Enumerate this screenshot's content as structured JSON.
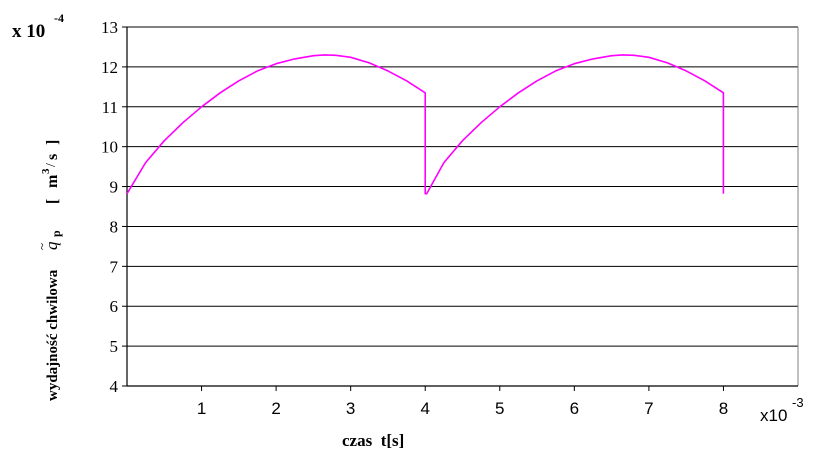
{
  "chart_data": {
    "type": "line",
    "title": "",
    "y_multiplier_label": "x 10",
    "y_multiplier_exponent": "-4",
    "ylabel_left": "wydajność chwilowa",
    "ylabel_symbol": "q",
    "ylabel_tilde": "~",
    "ylabel_subscript": "p",
    "ylabel_unit_open": "[",
    "ylabel_unit_m": "m",
    "ylabel_unit_exp": "3",
    "ylabel_unit_slash": "/",
    "ylabel_unit_s": "s",
    "ylabel_unit_close": "]",
    "xlabel": "czas  t[s]",
    "x_multiplier_label": "x10",
    "x_multiplier_exponent": "-3",
    "xlim": [
      0,
      9
    ],
    "ylim": [
      4,
      13
    ],
    "x_ticks": [
      "1",
      "2",
      "3",
      "4",
      "5",
      "6",
      "7",
      "8"
    ],
    "x_tick_values": [
      1,
      2,
      3,
      4,
      5,
      6,
      7,
      8
    ],
    "y_ticks": [
      "4",
      "5",
      "6",
      "7",
      "8",
      "9",
      "10",
      "11",
      "12",
      "13"
    ],
    "y_tick_values": [
      4,
      5,
      6,
      7,
      8,
      9,
      10,
      11,
      12,
      13
    ],
    "grid": true,
    "series": [
      {
        "color": "#ff00ff",
        "x": [
          0,
          0.25,
          0.5,
          0.75,
          1.0,
          1.25,
          1.5,
          1.75,
          2.0,
          2.25,
          2.5,
          2.65,
          2.8,
          3.0,
          3.25,
          3.5,
          3.75,
          4.0,
          4.0,
          4.02,
          4.25,
          4.5,
          4.75,
          5.0,
          5.25,
          5.5,
          5.75,
          6.0,
          6.25,
          6.5,
          6.65,
          6.8,
          7.0,
          7.25,
          7.5,
          7.75,
          8.0,
          8.0
        ],
        "y": [
          8.82,
          9.6,
          10.15,
          10.6,
          11.0,
          11.35,
          11.65,
          11.9,
          12.08,
          12.2,
          12.28,
          12.3,
          12.29,
          12.24,
          12.1,
          11.9,
          11.65,
          11.35,
          8.82,
          8.82,
          9.6,
          10.15,
          10.6,
          11.0,
          11.35,
          11.65,
          11.9,
          12.08,
          12.2,
          12.28,
          12.3,
          12.29,
          12.24,
          12.1,
          11.9,
          11.65,
          11.35,
          8.82
        ]
      }
    ]
  }
}
